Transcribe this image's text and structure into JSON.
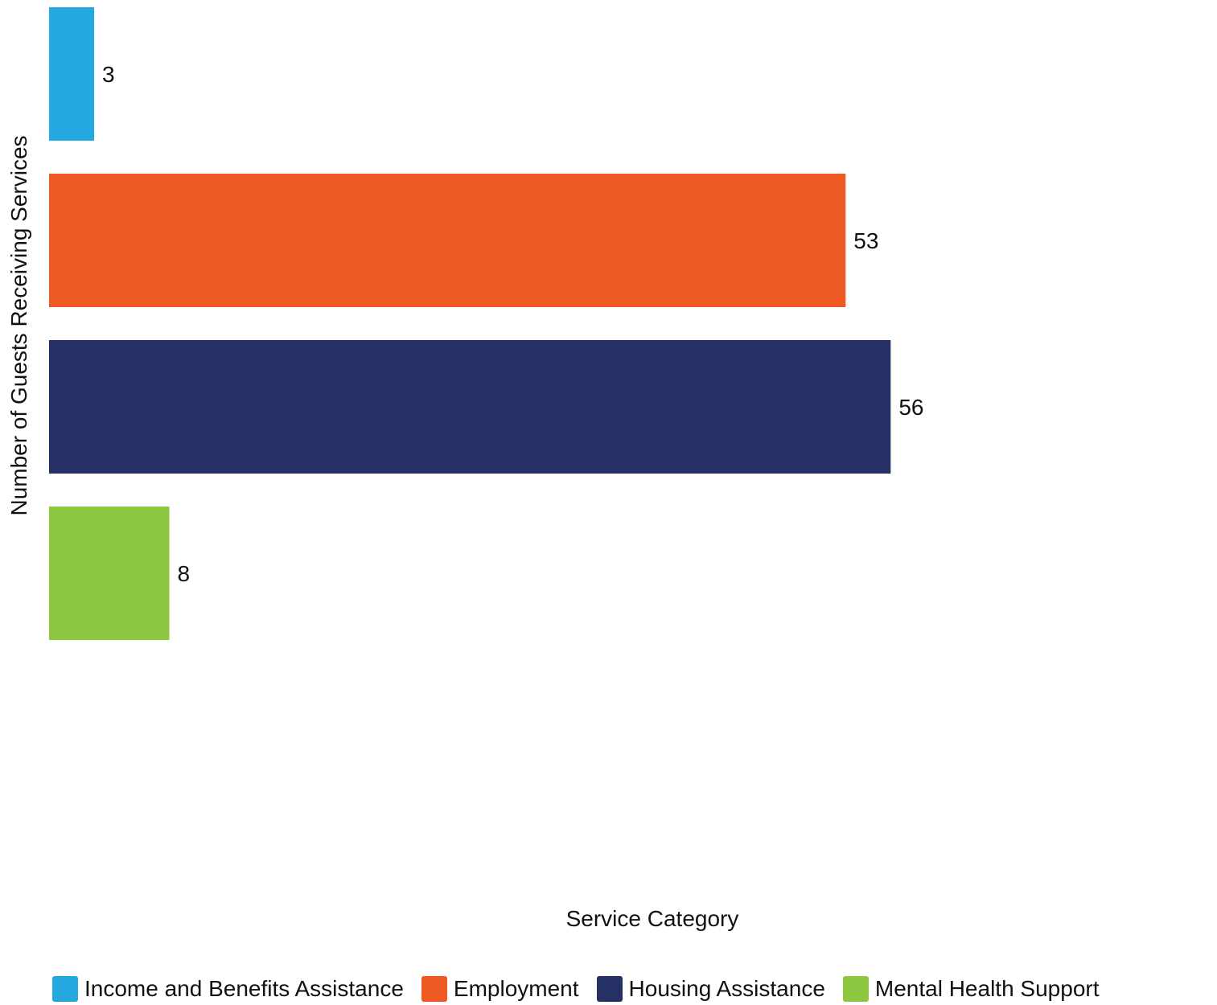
{
  "chart_data": {
    "type": "bar",
    "orientation": "horizontal",
    "xlabel": "Service Category",
    "ylabel": "Number of Guests Receiving Services",
    "categories": [
      "Income and Benefits Assistance",
      "Employment",
      "Housing Assistance",
      "Mental Health Support"
    ],
    "values": [
      3,
      53,
      56,
      8
    ],
    "data_labels": [
      "3",
      "53",
      "56",
      "8"
    ],
    "colors": [
      "#23a8e0",
      "#ef5a24",
      "#253165",
      "#8dc63f"
    ],
    "xlim": [
      0,
      76
    ],
    "grid": false,
    "legend": {
      "position": "bottom",
      "entries": [
        "Income and Benefits Assistance",
        "Employment",
        "Housing Assistance",
        "Mental Health Support"
      ]
    }
  }
}
